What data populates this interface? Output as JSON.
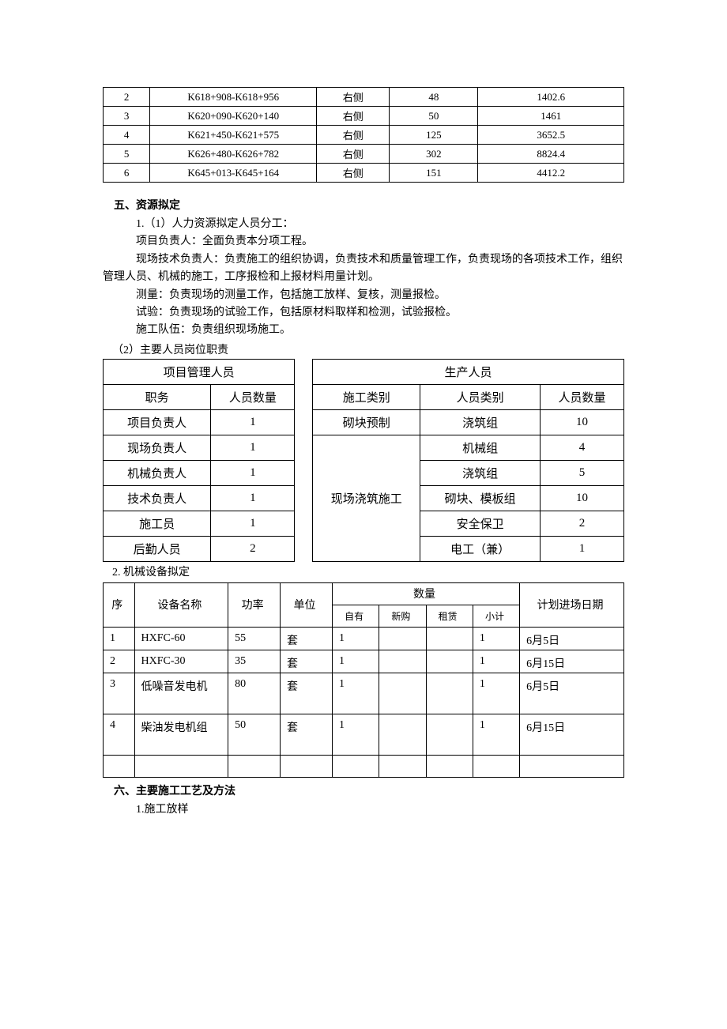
{
  "table1": {
    "rows": [
      {
        "no": "2",
        "range": "K618+908-K618+956",
        "side": "右侧",
        "len": "48",
        "val": "1402.6"
      },
      {
        "no": "3",
        "range": "K620+090-K620+140",
        "side": "右侧",
        "len": "50",
        "val": "1461"
      },
      {
        "no": "4",
        "range": "K621+450-K621+575",
        "side": "右侧",
        "len": "125",
        "val": "3652.5"
      },
      {
        "no": "5",
        "range": "K626+480-K626+782",
        "side": "右侧",
        "len": "302",
        "val": "8824.4"
      },
      {
        "no": "6",
        "range": "K645+013-K645+164",
        "side": "右侧",
        "len": "151",
        "val": "4412.2"
      }
    ]
  },
  "section5": {
    "title": "五、资源拟定",
    "line1": "1.（1）人力资源拟定人员分工：",
    "line2": "项目负责人：全面负责本分项工程。",
    "line3": "现场技术负责人：负责施工的组织协调，负责技术和质量管理工作，负责现场的各项技术工作，组织管理人员、机械的施工，工序报检和上报材料用量计划。",
    "line4": "测量：负责现场的测量工作，包括施工放样、复核，测量报检。",
    "line5": "试验：负责现场的试验工作，包括原材料取样和检测，试验报检。",
    "line6": "施工队伍：负责组织现场施工。",
    "line7": "（2）主要人员岗位职责"
  },
  "table2": {
    "h_mgmt": "项目管理人员",
    "h_prod": "生产人员",
    "h_role": "职务",
    "h_count": "人员数量",
    "h_type": "施工类别",
    "h_ptype": "人员类别",
    "h_pcount": "人员数量",
    "rows": [
      {
        "role": "项目负责人",
        "rc": "1",
        "type": "砌块预制",
        "ptype": "浇筑组",
        "pc": "10"
      },
      {
        "role": "现场负责人",
        "rc": "1",
        "type": "",
        "ptype": "机械组",
        "pc": "4"
      },
      {
        "role": "机械负责人",
        "rc": "1",
        "type": "",
        "ptype": "浇筑组",
        "pc": "5"
      },
      {
        "role": "技术负责人",
        "rc": "1",
        "type": "现场浇筑施工",
        "ptype": "砌块、模板组",
        "pc": "10"
      },
      {
        "role": "施工员",
        "rc": "1",
        "type": "",
        "ptype": "安全保卫",
        "pc": "2"
      },
      {
        "role": "后勤人员",
        "rc": "2",
        "type": "",
        "ptype": "电工（兼）",
        "pc": "1"
      }
    ]
  },
  "mech_title": "2.  机械设备拟定",
  "table3": {
    "h_seq": "序",
    "h_name": "设备名称",
    "h_pow": "功率",
    "h_unit": "单位",
    "h_qty": "数量",
    "h_own": "自有",
    "h_buy": "新购",
    "h_rent": "租赁",
    "h_sub": "小计",
    "h_date": "计划进场日期",
    "rows": [
      {
        "n": "1",
        "name": "HXFC-60",
        "pow": "55",
        "unit": "套",
        "own": "1",
        "buy": "",
        "rent": "",
        "sub": "1",
        "date": "6月5日"
      },
      {
        "n": "2",
        "name": "HXFC-30",
        "pow": "35",
        "unit": "套",
        "own": "1",
        "buy": "",
        "rent": "",
        "sub": "1",
        "date": "6月15日"
      },
      {
        "n": "3",
        "name": "低噪音发电机",
        "pow": "80",
        "unit": "套",
        "own": "1",
        "buy": "",
        "rent": "",
        "sub": "1",
        "date": "6月5日"
      },
      {
        "n": "4",
        "name": "柴油发电机组",
        "pow": "50",
        "unit": "套",
        "own": "1",
        "buy": "",
        "rent": "",
        "sub": "1",
        "date": "6月15日"
      }
    ]
  },
  "section6": {
    "title": "六、主要施工工艺及方法",
    "line1": "1.施工放样"
  }
}
